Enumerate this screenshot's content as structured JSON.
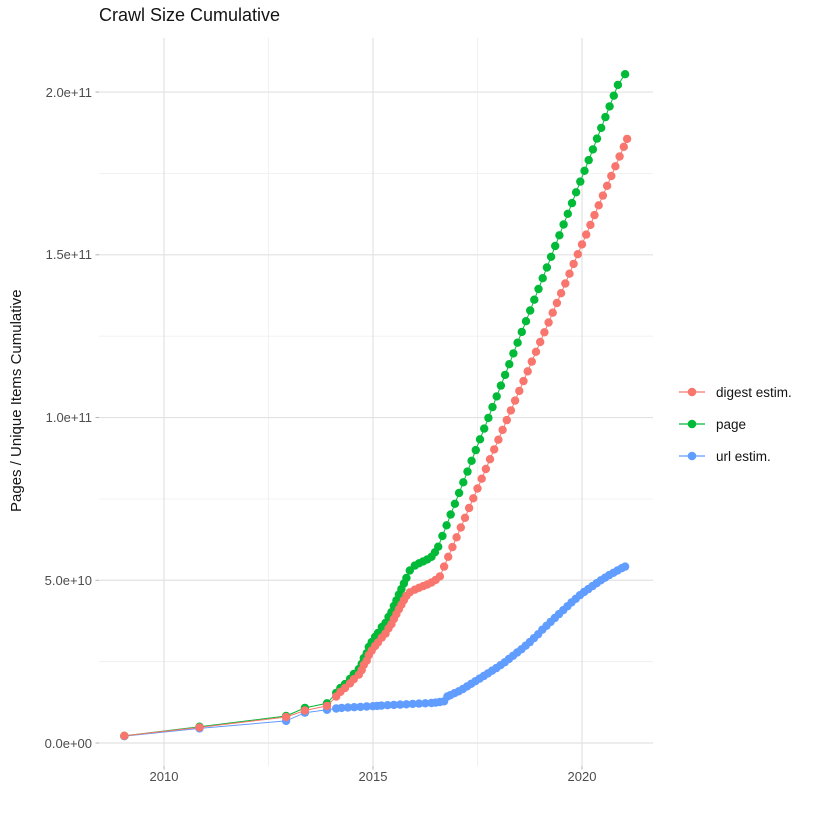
{
  "chart_data": {
    "type": "scatter",
    "title": "Crawl Size Cumulative",
    "xlabel": "",
    "ylabel": "Pages / Unique Items Cumulative",
    "legend_position": "right",
    "grid": "major and minor, light gray on white",
    "value_scale": "1e9",
    "x_axis": {
      "range_years": [
        2008.45,
        2021.7
      ],
      "ticks": [
        {
          "label": "2010",
          "year": 2010
        },
        {
          "label": "2015",
          "year": 2015
        },
        {
          "label": "2020",
          "year": 2020
        }
      ],
      "minor_years": [
        2012.5,
        2017.5
      ]
    },
    "y_axis": {
      "range_e9": [
        -7,
        224
      ],
      "ticks": [
        {
          "label": "0.0e+00",
          "value_e9": 0
        },
        {
          "label": "5.0e+10",
          "value_e9": 50
        },
        {
          "label": "1.0e+11",
          "value_e9": 100
        },
        {
          "label": "1.5e+11",
          "value_e9": 150
        },
        {
          "label": "2.0e+11",
          "value_e9": 200
        }
      ],
      "minor_values_e9": [
        25,
        75,
        125,
        175
      ]
    },
    "colors": {
      "digest": "#F8766D",
      "page": "#00BA38",
      "url": "#619CFF"
    },
    "series": [
      {
        "id": "digest-estim",
        "name": "digest estim.",
        "color": "#F8766D",
        "points": [
          [
            2009.05,
            2.2
          ],
          [
            2010.85,
            4.8
          ],
          [
            2012.92,
            8.0
          ],
          [
            2013.37,
            10.0
          ],
          [
            2013.9,
            11.4
          ],
          [
            2014.12,
            14.3
          ],
          [
            2014.22,
            15.7
          ],
          [
            2014.33,
            16.9
          ],
          [
            2014.45,
            18.3
          ],
          [
            2014.54,
            19.6
          ],
          [
            2014.66,
            21.0
          ],
          [
            2014.73,
            22.4
          ],
          [
            2014.78,
            24.0
          ],
          [
            2014.85,
            25.3
          ],
          [
            2014.9,
            27.0
          ],
          [
            2014.97,
            28.4
          ],
          [
            2015.05,
            29.8
          ],
          [
            2015.12,
            30.9
          ],
          [
            2015.21,
            32.4
          ],
          [
            2015.3,
            33.6
          ],
          [
            2015.37,
            35.2
          ],
          [
            2015.44,
            36.5
          ],
          [
            2015.5,
            38.1
          ],
          [
            2015.56,
            39.6
          ],
          [
            2015.62,
            41.1
          ],
          [
            2015.68,
            42.5
          ],
          [
            2015.74,
            43.9
          ],
          [
            2015.8,
            45.2
          ],
          [
            2015.88,
            46.3
          ],
          [
            2016.0,
            47.1
          ],
          [
            2016.1,
            47.7
          ],
          [
            2016.2,
            48.2
          ],
          [
            2016.3,
            48.7
          ],
          [
            2016.4,
            49.3
          ],
          [
            2016.5,
            50.1
          ],
          [
            2016.6,
            51.2
          ],
          [
            2016.7,
            54.2
          ],
          [
            2016.8,
            57.2
          ],
          [
            2016.9,
            60.2
          ],
          [
            2017.0,
            63.2
          ],
          [
            2017.1,
            66.2
          ],
          [
            2017.2,
            69.2
          ],
          [
            2017.3,
            72.2
          ],
          [
            2017.4,
            75.2
          ],
          [
            2017.5,
            78.2
          ],
          [
            2017.6,
            81.2
          ],
          [
            2017.7,
            84.2
          ],
          [
            2017.8,
            87.2
          ],
          [
            2017.9,
            90.2
          ],
          [
            2018.0,
            93.2
          ],
          [
            2018.1,
            96.2
          ],
          [
            2018.2,
            99.2
          ],
          [
            2018.3,
            102.2
          ],
          [
            2018.4,
            105.2
          ],
          [
            2018.5,
            108.2
          ],
          [
            2018.6,
            111.2
          ],
          [
            2018.7,
            114.2
          ],
          [
            2018.8,
            117.2
          ],
          [
            2018.9,
            120.2
          ],
          [
            2019.0,
            123.2
          ],
          [
            2019.1,
            126.2
          ],
          [
            2019.2,
            129.2
          ],
          [
            2019.3,
            132.2
          ],
          [
            2019.4,
            135.2
          ],
          [
            2019.5,
            138.2
          ],
          [
            2019.6,
            141.2
          ],
          [
            2019.7,
            144.2
          ],
          [
            2019.8,
            147.2
          ],
          [
            2019.9,
            150.2
          ],
          [
            2020.0,
            153.2
          ],
          [
            2020.1,
            156.2
          ],
          [
            2020.2,
            159.2
          ],
          [
            2020.3,
            162.2
          ],
          [
            2020.4,
            165.2
          ],
          [
            2020.5,
            168.2
          ],
          [
            2020.6,
            171.2
          ],
          [
            2020.7,
            174.2
          ],
          [
            2020.8,
            177.2
          ],
          [
            2020.9,
            180.2
          ],
          [
            2021.0,
            183.2
          ],
          [
            2021.08,
            185.6
          ]
        ]
      },
      {
        "id": "page",
        "name": "page",
        "color": "#00BA38",
        "points": [
          [
            2009.05,
            2.2
          ],
          [
            2010.85,
            5.0
          ],
          [
            2012.92,
            8.3
          ],
          [
            2013.37,
            10.8
          ],
          [
            2013.9,
            12.2
          ],
          [
            2014.12,
            15.4
          ],
          [
            2014.22,
            16.9
          ],
          [
            2014.33,
            18.1
          ],
          [
            2014.45,
            19.7
          ],
          [
            2014.54,
            21.2
          ],
          [
            2014.66,
            22.7
          ],
          [
            2014.73,
            24.3
          ],
          [
            2014.78,
            26.1
          ],
          [
            2014.85,
            27.6
          ],
          [
            2014.9,
            29.5
          ],
          [
            2014.97,
            31.0
          ],
          [
            2015.05,
            32.6
          ],
          [
            2015.12,
            33.8
          ],
          [
            2015.21,
            35.6
          ],
          [
            2015.3,
            36.9
          ],
          [
            2015.37,
            38.7
          ],
          [
            2015.44,
            40.2
          ],
          [
            2015.5,
            42.1
          ],
          [
            2015.56,
            43.8
          ],
          [
            2015.62,
            45.6
          ],
          [
            2015.68,
            47.3
          ],
          [
            2015.74,
            49.0
          ],
          [
            2015.8,
            50.7
          ],
          [
            2015.88,
            53.0
          ],
          [
            2016.0,
            54.5
          ],
          [
            2016.1,
            55.2
          ],
          [
            2016.2,
            55.8
          ],
          [
            2016.3,
            56.4
          ],
          [
            2016.4,
            57.2
          ],
          [
            2016.48,
            58.6
          ],
          [
            2016.56,
            60.3
          ],
          [
            2016.66,
            63.6
          ],
          [
            2016.76,
            66.9
          ],
          [
            2016.86,
            70.2
          ],
          [
            2016.96,
            73.5
          ],
          [
            2017.06,
            76.8
          ],
          [
            2017.16,
            80.1
          ],
          [
            2017.26,
            83.4
          ],
          [
            2017.36,
            86.7
          ],
          [
            2017.46,
            90.0
          ],
          [
            2017.56,
            93.3
          ],
          [
            2017.66,
            96.6
          ],
          [
            2017.76,
            99.9
          ],
          [
            2017.86,
            103.2
          ],
          [
            2017.96,
            106.5
          ],
          [
            2018.06,
            109.8
          ],
          [
            2018.16,
            113.1
          ],
          [
            2018.26,
            116.4
          ],
          [
            2018.36,
            119.7
          ],
          [
            2018.46,
            123.0
          ],
          [
            2018.56,
            126.3
          ],
          [
            2018.66,
            129.6
          ],
          [
            2018.76,
            132.9
          ],
          [
            2018.86,
            136.2
          ],
          [
            2018.96,
            139.5
          ],
          [
            2019.06,
            142.8
          ],
          [
            2019.16,
            146.1
          ],
          [
            2019.26,
            149.4
          ],
          [
            2019.36,
            152.7
          ],
          [
            2019.46,
            156.0
          ],
          [
            2019.56,
            159.3
          ],
          [
            2019.66,
            162.6
          ],
          [
            2019.76,
            165.9
          ],
          [
            2019.86,
            169.2
          ],
          [
            2019.96,
            172.5
          ],
          [
            2020.06,
            175.8
          ],
          [
            2020.16,
            179.1
          ],
          [
            2020.26,
            182.4
          ],
          [
            2020.36,
            185.7
          ],
          [
            2020.46,
            189.0
          ],
          [
            2020.56,
            192.3
          ],
          [
            2020.66,
            195.6
          ],
          [
            2020.76,
            198.9
          ],
          [
            2020.86,
            202.2
          ],
          [
            2021.03,
            205.5
          ]
        ]
      },
      {
        "id": "url-estim",
        "name": "url estim.",
        "color": "#619CFF",
        "points": [
          [
            2009.05,
            2.1
          ],
          [
            2010.85,
            4.5
          ],
          [
            2012.92,
            6.8
          ],
          [
            2013.37,
            9.3
          ],
          [
            2013.9,
            10.2
          ],
          [
            2014.12,
            10.6
          ],
          [
            2014.25,
            10.8
          ],
          [
            2014.4,
            10.9
          ],
          [
            2014.55,
            11.0
          ],
          [
            2014.7,
            11.1
          ],
          [
            2014.85,
            11.2
          ],
          [
            2015.0,
            11.3
          ],
          [
            2015.1,
            11.4
          ],
          [
            2015.2,
            11.5
          ],
          [
            2015.35,
            11.6
          ],
          [
            2015.5,
            11.7
          ],
          [
            2015.65,
            11.8
          ],
          [
            2015.8,
            11.9
          ],
          [
            2015.95,
            12.0
          ],
          [
            2016.1,
            12.1
          ],
          [
            2016.25,
            12.2
          ],
          [
            2016.4,
            12.3
          ],
          [
            2016.5,
            12.4
          ],
          [
            2016.6,
            12.6
          ],
          [
            2016.7,
            12.8
          ],
          [
            2016.78,
            14.3
          ],
          [
            2016.85,
            14.7
          ],
          [
            2016.95,
            15.3
          ],
          [
            2017.05,
            15.9
          ],
          [
            2017.15,
            16.6
          ],
          [
            2017.25,
            17.4
          ],
          [
            2017.35,
            18.2
          ],
          [
            2017.45,
            19.0
          ],
          [
            2017.55,
            19.8
          ],
          [
            2017.65,
            20.6
          ],
          [
            2017.75,
            21.4
          ],
          [
            2017.85,
            22.2
          ],
          [
            2017.95,
            23.0
          ],
          [
            2018.05,
            23.9
          ],
          [
            2018.15,
            24.8
          ],
          [
            2018.25,
            25.8
          ],
          [
            2018.35,
            26.8
          ],
          [
            2018.45,
            27.8
          ],
          [
            2018.55,
            28.8
          ],
          [
            2018.65,
            29.9
          ],
          [
            2018.75,
            31.0
          ],
          [
            2018.85,
            32.2
          ],
          [
            2018.95,
            33.4
          ],
          [
            2019.05,
            34.8
          ],
          [
            2019.15,
            36.0
          ],
          [
            2019.25,
            37.2
          ],
          [
            2019.35,
            38.4
          ],
          [
            2019.45,
            39.6
          ],
          [
            2019.55,
            40.8
          ],
          [
            2019.65,
            42.0
          ],
          [
            2019.75,
            43.2
          ],
          [
            2019.85,
            44.3
          ],
          [
            2019.95,
            45.4
          ],
          [
            2020.05,
            46.4
          ],
          [
            2020.15,
            47.3
          ],
          [
            2020.25,
            48.2
          ],
          [
            2020.35,
            49.1
          ],
          [
            2020.45,
            50.0
          ],
          [
            2020.55,
            50.8
          ],
          [
            2020.65,
            51.6
          ],
          [
            2020.75,
            52.3
          ],
          [
            2020.85,
            53.0
          ],
          [
            2020.95,
            53.7
          ],
          [
            2021.03,
            54.2
          ]
        ]
      }
    ]
  }
}
